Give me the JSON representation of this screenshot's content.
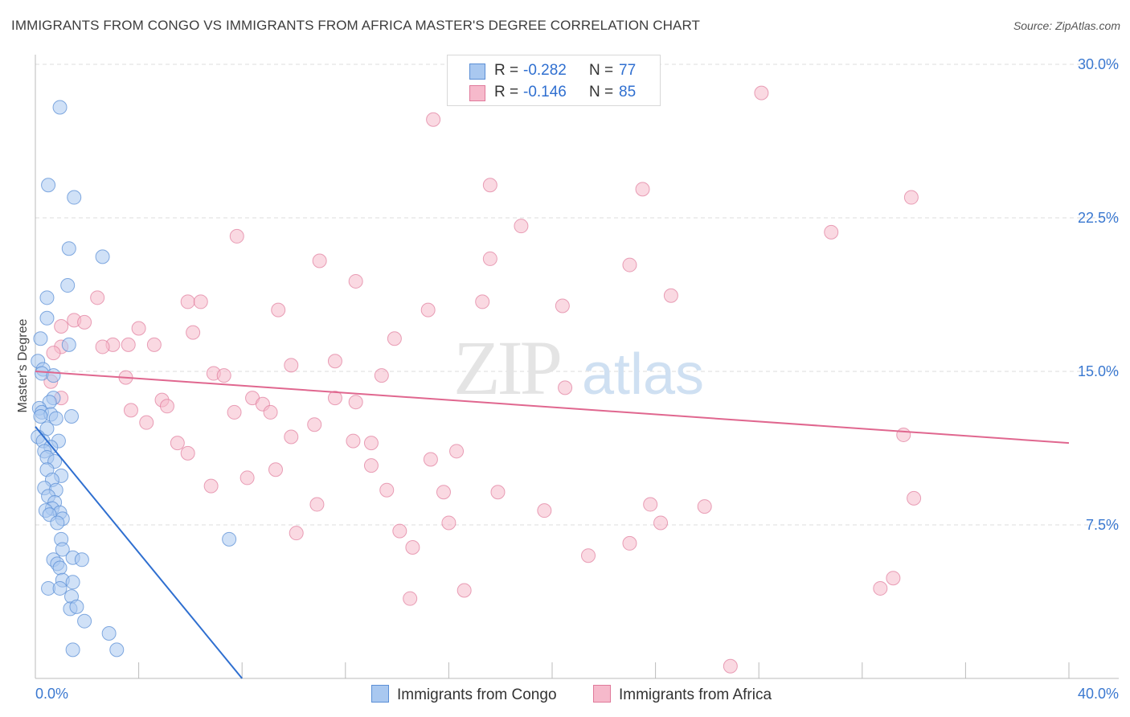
{
  "title": "IMMIGRANTS FROM CONGO VS IMMIGRANTS FROM AFRICA MASTER'S DEGREE CORRELATION CHART",
  "source": "Source: ZipAtlas.com",
  "watermark": {
    "zip": "ZIP",
    "atlas": "atlas"
  },
  "legend": {
    "r_label": "R =",
    "n_label": "N =",
    "congo": {
      "r": "-0.282",
      "n": "77"
    },
    "africa": {
      "r": "-0.146",
      "n": "85"
    }
  },
  "colors": {
    "congo_fill": "#a9c8f0",
    "congo_stroke": "#5b8fd6",
    "congo_line": "#2f6fd0",
    "africa_fill": "#f6b9cb",
    "africa_stroke": "#e07a9b",
    "africa_line": "#e0678f",
    "tick_label": "#3a78d0",
    "grid": "#dcdcdc"
  },
  "chart_data": {
    "type": "scatter",
    "title": "IMMIGRANTS FROM CONGO VS IMMIGRANTS FROM AFRICA MASTER'S DEGREE CORRELATION CHART",
    "xlabel": "",
    "ylabel": "Master's Degree",
    "xlim": [
      0,
      40
    ],
    "ylim": [
      0,
      30
    ],
    "x_tick_labels": [
      "0.0%",
      "40.0%"
    ],
    "y_ticks": [
      7.5,
      15.0,
      22.5,
      30.0
    ],
    "y_tick_labels": [
      "7.5%",
      "15.0%",
      "22.5%",
      "30.0%"
    ],
    "grid": true,
    "legend_position": "bottom-center",
    "series": [
      {
        "name": "Immigrants from Congo",
        "trend": {
          "x": [
            0.0,
            8.0
          ],
          "y": [
            12.3,
            0.0
          ]
        },
        "points": [
          [
            0.95,
            27.9
          ],
          [
            0.5,
            24.1
          ],
          [
            1.5,
            23.5
          ],
          [
            1.3,
            21.0
          ],
          [
            2.6,
            20.6
          ],
          [
            1.25,
            19.2
          ],
          [
            0.45,
            18.6
          ],
          [
            0.45,
            17.6
          ],
          [
            0.2,
            16.6
          ],
          [
            1.3,
            16.3
          ],
          [
            0.1,
            15.5
          ],
          [
            0.3,
            15.1
          ],
          [
            0.25,
            14.9
          ],
          [
            0.7,
            14.8
          ],
          [
            0.7,
            13.7
          ],
          [
            0.55,
            13.5
          ],
          [
            0.15,
            13.2
          ],
          [
            0.25,
            13.0
          ],
          [
            0.6,
            12.9
          ],
          [
            1.4,
            12.8
          ],
          [
            0.2,
            12.8
          ],
          [
            0.8,
            12.7
          ],
          [
            0.45,
            12.2
          ],
          [
            0.1,
            11.8
          ],
          [
            0.3,
            11.6
          ],
          [
            0.9,
            11.6
          ],
          [
            0.6,
            11.3
          ],
          [
            0.35,
            11.1
          ],
          [
            0.45,
            10.8
          ],
          [
            0.75,
            10.6
          ],
          [
            0.45,
            10.2
          ],
          [
            1.0,
            9.9
          ],
          [
            0.65,
            9.7
          ],
          [
            0.35,
            9.3
          ],
          [
            0.8,
            9.2
          ],
          [
            0.5,
            8.9
          ],
          [
            0.75,
            8.6
          ],
          [
            0.65,
            8.3
          ],
          [
            0.4,
            8.2
          ],
          [
            0.95,
            8.1
          ],
          [
            0.55,
            8.0
          ],
          [
            1.05,
            7.8
          ],
          [
            0.85,
            7.6
          ],
          [
            1.0,
            6.8
          ],
          [
            1.05,
            6.3
          ],
          [
            7.5,
            6.8
          ],
          [
            0.7,
            5.8
          ],
          [
            1.45,
            5.9
          ],
          [
            1.8,
            5.8
          ],
          [
            0.85,
            5.6
          ],
          [
            0.95,
            5.4
          ],
          [
            1.05,
            4.8
          ],
          [
            1.45,
            4.7
          ],
          [
            0.5,
            4.4
          ],
          [
            0.95,
            4.4
          ],
          [
            1.4,
            4.0
          ],
          [
            1.35,
            3.4
          ],
          [
            1.6,
            3.5
          ],
          [
            1.9,
            2.8
          ],
          [
            2.85,
            2.2
          ],
          [
            1.45,
            1.4
          ],
          [
            3.15,
            1.4
          ]
        ]
      },
      {
        "name": "Immigrants from Africa",
        "trend": {
          "x": [
            0.0,
            40.0
          ],
          "y": [
            15.0,
            11.5
          ]
        },
        "points": [
          [
            28.1,
            28.6
          ],
          [
            15.4,
            27.3
          ],
          [
            17.6,
            24.1
          ],
          [
            23.5,
            23.9
          ],
          [
            33.9,
            23.5
          ],
          [
            18.8,
            22.1
          ],
          [
            30.8,
            21.8
          ],
          [
            7.8,
            21.6
          ],
          [
            11.0,
            20.4
          ],
          [
            17.6,
            20.5
          ],
          [
            23.0,
            20.2
          ],
          [
            12.4,
            19.4
          ],
          [
            24.6,
            18.7
          ],
          [
            2.4,
            18.6
          ],
          [
            5.9,
            18.4
          ],
          [
            6.4,
            18.4
          ],
          [
            17.3,
            18.4
          ],
          [
            20.4,
            18.2
          ],
          [
            9.4,
            18.0
          ],
          [
            15.2,
            18.0
          ],
          [
            1.5,
            17.5
          ],
          [
            1.9,
            17.4
          ],
          [
            1.0,
            17.2
          ],
          [
            4.0,
            17.1
          ],
          [
            6.1,
            16.9
          ],
          [
            13.9,
            16.6
          ],
          [
            1.0,
            16.2
          ],
          [
            3.0,
            16.3
          ],
          [
            3.6,
            16.3
          ],
          [
            2.6,
            16.2
          ],
          [
            4.6,
            16.3
          ],
          [
            0.7,
            15.9
          ],
          [
            11.6,
            15.5
          ],
          [
            9.9,
            15.3
          ],
          [
            6.9,
            14.9
          ],
          [
            7.3,
            14.8
          ],
          [
            13.4,
            14.8
          ],
          [
            3.5,
            14.7
          ],
          [
            0.6,
            14.5
          ],
          [
            20.5,
            14.2
          ],
          [
            1.0,
            13.7
          ],
          [
            8.4,
            13.7
          ],
          [
            11.6,
            13.7
          ],
          [
            4.9,
            13.6
          ],
          [
            8.8,
            13.4
          ],
          [
            12.4,
            13.5
          ],
          [
            5.1,
            13.3
          ],
          [
            3.7,
            13.1
          ],
          [
            9.1,
            13.0
          ],
          [
            7.7,
            13.0
          ],
          [
            4.3,
            12.5
          ],
          [
            10.8,
            12.4
          ],
          [
            33.6,
            11.9
          ],
          [
            9.9,
            11.8
          ],
          [
            12.3,
            11.6
          ],
          [
            5.5,
            11.5
          ],
          [
            13.0,
            11.5
          ],
          [
            16.3,
            11.1
          ],
          [
            5.9,
            11.0
          ],
          [
            15.3,
            10.7
          ],
          [
            13.0,
            10.4
          ],
          [
            9.3,
            10.2
          ],
          [
            8.2,
            9.8
          ],
          [
            6.8,
            9.4
          ],
          [
            13.6,
            9.2
          ],
          [
            15.8,
            9.1
          ],
          [
            17.9,
            9.1
          ],
          [
            34.0,
            8.8
          ],
          [
            10.9,
            8.5
          ],
          [
            23.8,
            8.5
          ],
          [
            25.9,
            8.4
          ],
          [
            19.7,
            8.2
          ],
          [
            24.2,
            7.6
          ],
          [
            16.0,
            7.6
          ],
          [
            14.1,
            7.2
          ],
          [
            10.1,
            7.1
          ],
          [
            23.0,
            6.6
          ],
          [
            14.6,
            6.4
          ],
          [
            21.4,
            6.0
          ],
          [
            33.2,
            4.9
          ],
          [
            32.7,
            4.4
          ],
          [
            16.6,
            4.3
          ],
          [
            14.5,
            3.9
          ],
          [
            26.9,
            0.6
          ]
        ]
      }
    ]
  },
  "bottom_legend": {
    "congo": "Immigrants from Congo",
    "africa": "Immigrants from Africa"
  }
}
